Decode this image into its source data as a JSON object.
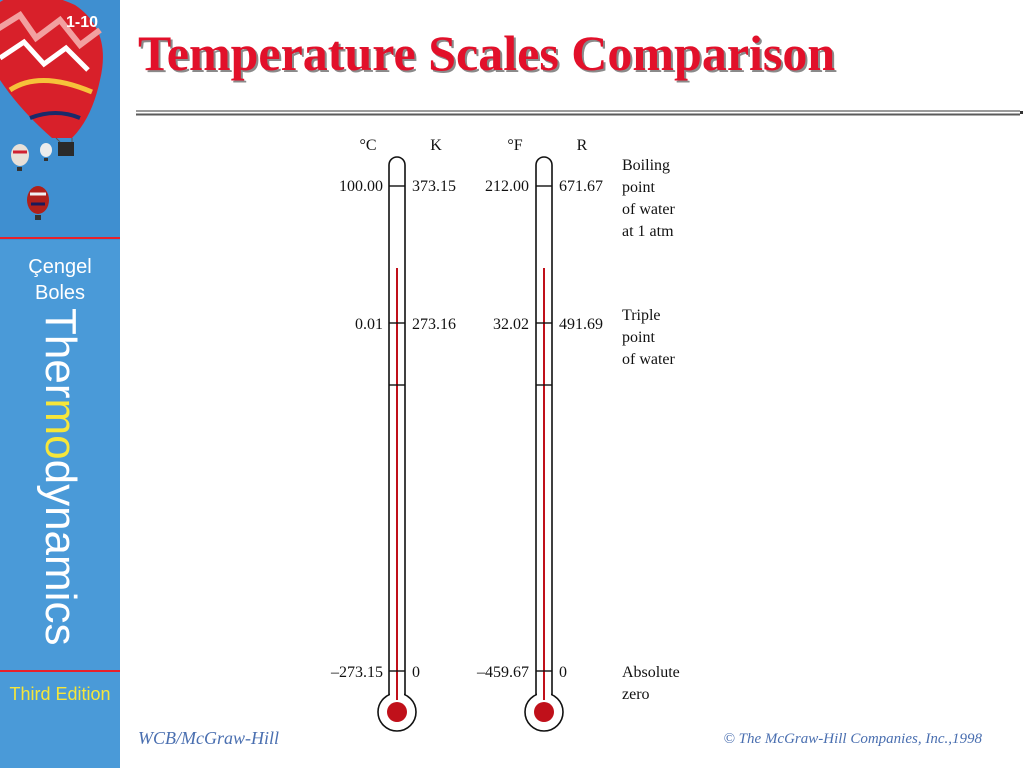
{
  "slide": {
    "number": "1-10",
    "title": "Temperature Scales Comparison"
  },
  "sidebar": {
    "author_line1": "Çengel",
    "author_line2": "Boles",
    "book_title_part1": "Ther",
    "book_title_highlight": "mo",
    "book_title_part2": "dynamics",
    "edition": "Third Edition"
  },
  "colors": {
    "sidebar_blue": "#4a9ad8",
    "title_red": "#e2102a",
    "mercury_red": "#c0101a",
    "footer_blue": "#4a6fb0"
  },
  "diagram": {
    "scales": {
      "celsius": "°C",
      "kelvin": "K",
      "fahrenheit": "°F",
      "rankine": "R"
    },
    "points": [
      {
        "celsius": "100.00",
        "kelvin": "373.15",
        "fahrenheit": "212.00",
        "rankine": "671.67",
        "label_lines": [
          "Boiling",
          "point",
          "of water",
          "at 1 atm"
        ]
      },
      {
        "celsius": "0.01",
        "kelvin": "273.16",
        "fahrenheit": "32.02",
        "rankine": "491.69",
        "label_lines": [
          "Triple",
          "point",
          "of water"
        ]
      },
      {
        "celsius": "–273.15",
        "kelvin": "0",
        "fahrenheit": "–459.67",
        "rankine": "0",
        "label_lines": [
          "Absolute",
          "zero"
        ]
      }
    ]
  },
  "footer": {
    "publisher": "WCB/McGraw-Hill",
    "copyright": "© The McGraw-Hill Companies, Inc.,1998"
  }
}
